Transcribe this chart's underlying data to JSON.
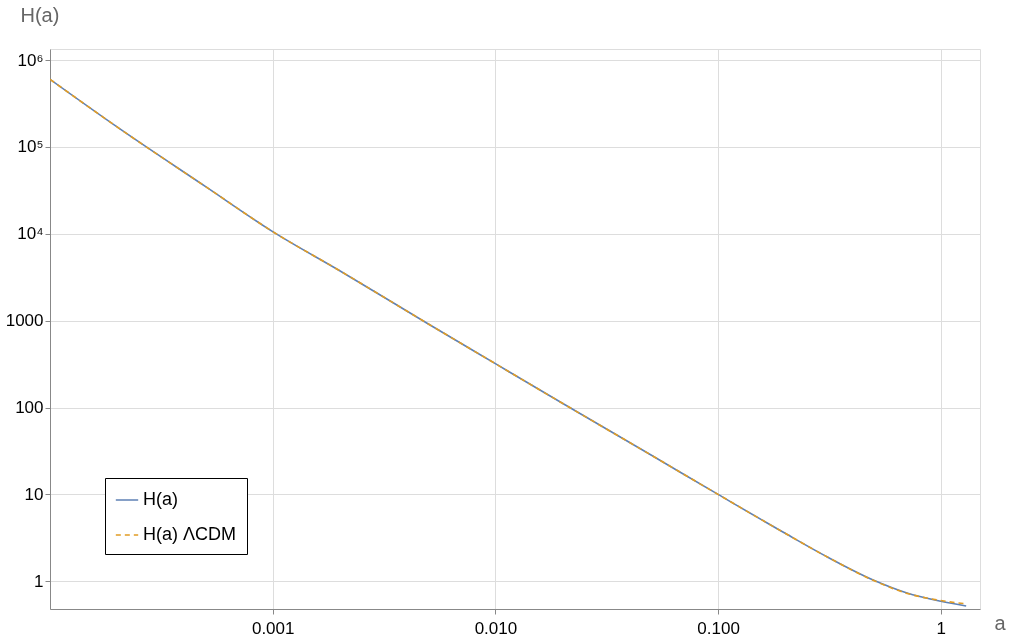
{
  "chart_data": {
    "type": "line",
    "xlabel": "a",
    "ylabel": "H(a)",
    "log": "xy",
    "grid": true,
    "legend": "bottom left",
    "xlim": [
      0.0001,
      1.5
    ],
    "ylim": [
      0.48,
      1340000
    ],
    "xticks": [
      0.001,
      {
        "value": 0.01,
        "label": "0.010"
      },
      {
        "value": 0.1,
        "label": "0.100"
      },
      1
    ],
    "yticks": [
      1,
      10,
      100,
      1000,
      {
        "value": 10000,
        "label": "10⁴"
      },
      {
        "value": 100000,
        "label": "10⁵"
      },
      {
        "value": 1000000,
        "label": "10⁶"
      }
    ],
    "x": [
      0.0001,
      0.0002,
      0.0005,
      0.001,
      0.002,
      0.005,
      0.01,
      0.02,
      0.05,
      0.1,
      0.2,
      0.3,
      0.5,
      0.7,
      1,
      1.3
    ],
    "series": [
      {
        "name": "H(a)",
        "color": "#5e81b5",
        "line_style": "solid",
        "values": [
          600000,
          170000,
          34900,
          10600,
          3760,
          917,
          320,
          112,
          28.4,
          10.0,
          3.57,
          1.99,
          1.03,
          0.74,
          0.59,
          0.52
        ]
      },
      {
        "name": "H(a) ΛCDM",
        "color": "#e19c24",
        "line_style": "dashed",
        "values": [
          600000,
          170000,
          34900,
          10600,
          3760,
          917,
          320,
          112,
          28.4,
          10.0,
          3.57,
          1.99,
          1.02,
          0.73,
          0.6,
          0.55
        ]
      }
    ]
  }
}
